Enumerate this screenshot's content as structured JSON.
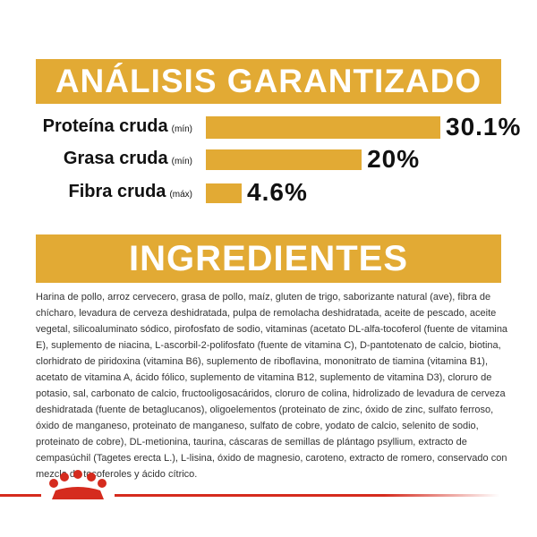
{
  "chart_data": {
    "type": "bar",
    "title": "ANÁLISIS GARANTIZADO",
    "categories": [
      "Proteína cruda",
      "Grasa cruda",
      "Fibra cruda"
    ],
    "qualifiers": [
      "(mín)",
      "(mín)",
      "(máx)"
    ],
    "values": [
      30.1,
      20,
      4.6
    ],
    "value_labels": [
      "30.1%",
      "20%",
      "4.6%"
    ],
    "color": "#e2aa34"
  },
  "ingredients": {
    "title": "INGREDIENTES",
    "text": "Harina de pollo, arroz cervecero, grasa de pollo, maíz, gluten de trigo, saborizante natural (ave), fibra de chícharo, levadura de cerveza deshidratada, pulpa de remolacha deshidratada, aceite de pescado, aceite vegetal, silicoaluminato sódico, pirofosfato de sodio, vitaminas (acetato DL-alfa-tocoferol (fuente de vitamina E), suplemento de niacina, L-ascorbil-2-polifosfato (fuente de vitamina C), D-pantotenato de calcio, biotina, clorhidrato de piridoxina (vitamina B6), suplemento de riboflavina, mononitrato de tiamina (vitamina B1), acetato de vitamina A, ácido fólico, suplemento de vitamina B12, suplemento de vitamina D3), cloruro de potasio, sal, carbonato de calcio, fructooligosacáridos, cloruro de colina, hidrolizado de levadura de cerveza deshidratada (fuente de betaglucanos), oligoelementos (proteinato de zinc, óxido de zinc, sulfato ferroso, óxido de manganeso, proteinato de manganeso, sulfato de cobre, yodato de calcio, selenito de sodio, proteinato de cobre), DL-metionina, taurina, cáscaras de semillas de plántago psyllium, extracto de cempasúchil (Tagetes erecta L.), L-lisina, óxido de magnesio, caroteno, extracto de romero, conservado con mezcla de tocoferoles y ácido cítrico."
  }
}
